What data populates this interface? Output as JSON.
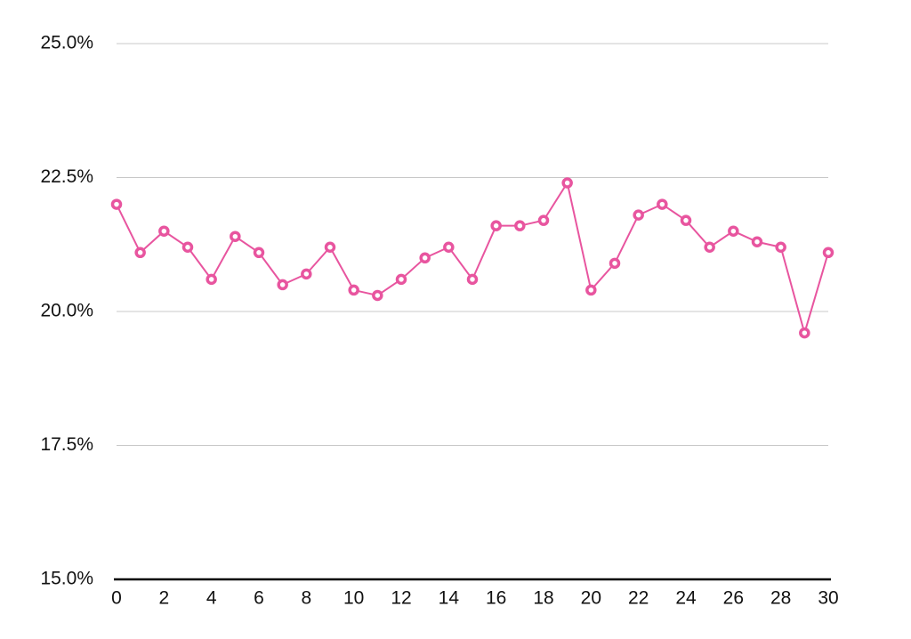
{
  "chart_data": {
    "type": "line",
    "x": [
      0,
      1,
      2,
      3,
      4,
      5,
      6,
      7,
      8,
      9,
      10,
      11,
      12,
      13,
      14,
      15,
      16,
      17,
      18,
      19,
      20,
      21,
      22,
      23,
      24,
      25,
      26,
      27,
      28,
      29,
      30
    ],
    "values": [
      22.0,
      21.1,
      21.5,
      21.2,
      20.6,
      21.4,
      21.1,
      20.5,
      20.7,
      21.2,
      20.4,
      20.3,
      20.6,
      21.0,
      21.2,
      20.6,
      21.6,
      21.6,
      21.7,
      22.4,
      20.4,
      20.9,
      21.8,
      22.0,
      21.7,
      21.2,
      21.5,
      21.3,
      21.2,
      19.6,
      21.1
    ],
    "color": "#e8559f",
    "xlim": [
      0,
      30
    ],
    "xticks": [
      0,
      2,
      4,
      6,
      8,
      10,
      12,
      14,
      16,
      18,
      20,
      22,
      24,
      26,
      28,
      30
    ],
    "ylim": [
      15,
      25
    ],
    "yticks": [
      {
        "value": 15,
        "label": "15.0%"
      },
      {
        "value": 17.5,
        "label": "17.5%"
      },
      {
        "value": 20,
        "label": "20.0%"
      },
      {
        "value": 22.5,
        "label": "22.5%"
      },
      {
        "value": 25,
        "label": "25.0%"
      }
    ],
    "grid": true
  }
}
